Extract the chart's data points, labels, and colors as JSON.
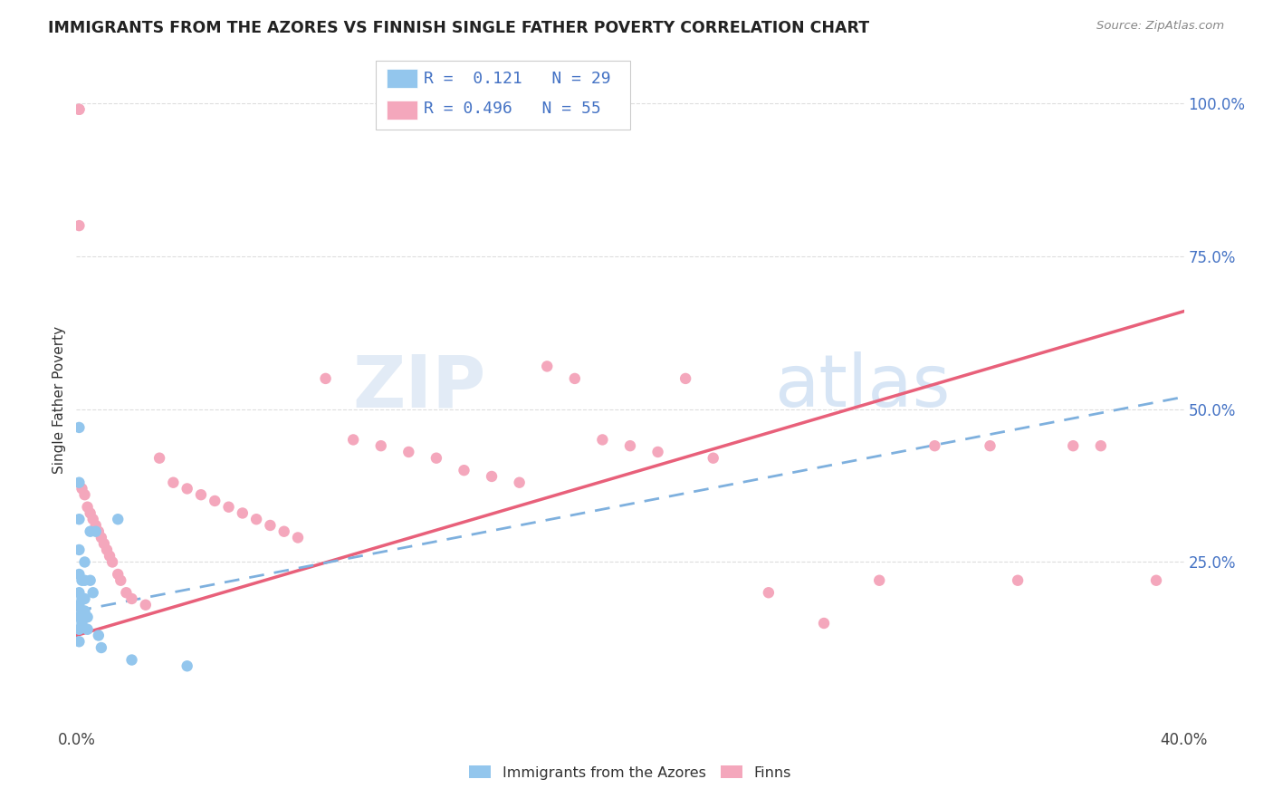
{
  "title": "IMMIGRANTS FROM THE AZORES VS FINNISH SINGLE FATHER POVERTY CORRELATION CHART",
  "source": "Source: ZipAtlas.com",
  "ylabel": "Single Father Poverty",
  "xlim": [
    0.0,
    0.4
  ],
  "ylim": [
    -0.02,
    1.05
  ],
  "watermark_zip": "ZIP",
  "watermark_atlas": "atlas",
  "blue_color": "#93C6ED",
  "pink_color": "#F4A7BC",
  "blue_line_color": "#7EB0DE",
  "pink_line_color": "#E8607A",
  "background_color": "#FFFFFF",
  "grid_color": "#DDDDDD",
  "blue_x": [
    0.001,
    0.001,
    0.001,
    0.001,
    0.001,
    0.001,
    0.001,
    0.001,
    0.001,
    0.001,
    0.002,
    0.002,
    0.002,
    0.002,
    0.003,
    0.003,
    0.003,
    0.003,
    0.004,
    0.004,
    0.005,
    0.005,
    0.006,
    0.007,
    0.008,
    0.009,
    0.015,
    0.02,
    0.04
  ],
  "blue_y": [
    0.47,
    0.38,
    0.32,
    0.27,
    0.23,
    0.2,
    0.18,
    0.16,
    0.14,
    0.12,
    0.22,
    0.19,
    0.17,
    0.15,
    0.25,
    0.22,
    0.19,
    0.17,
    0.16,
    0.14,
    0.3,
    0.22,
    0.2,
    0.3,
    0.13,
    0.11,
    0.32,
    0.09,
    0.08
  ],
  "pink_x": [
    0.001,
    0.001,
    0.001,
    0.002,
    0.003,
    0.004,
    0.005,
    0.006,
    0.007,
    0.008,
    0.009,
    0.01,
    0.011,
    0.012,
    0.013,
    0.015,
    0.016,
    0.018,
    0.02,
    0.025,
    0.03,
    0.035,
    0.04,
    0.045,
    0.05,
    0.055,
    0.06,
    0.065,
    0.07,
    0.075,
    0.08,
    0.09,
    0.1,
    0.11,
    0.12,
    0.13,
    0.14,
    0.15,
    0.16,
    0.17,
    0.18,
    0.19,
    0.2,
    0.21,
    0.22,
    0.23,
    0.25,
    0.27,
    0.29,
    0.31,
    0.33,
    0.34,
    0.36,
    0.37,
    0.39
  ],
  "pink_y": [
    0.99,
    0.99,
    0.8,
    0.37,
    0.36,
    0.34,
    0.33,
    0.32,
    0.31,
    0.3,
    0.29,
    0.28,
    0.27,
    0.26,
    0.25,
    0.23,
    0.22,
    0.2,
    0.19,
    0.18,
    0.42,
    0.38,
    0.37,
    0.36,
    0.35,
    0.34,
    0.33,
    0.32,
    0.31,
    0.3,
    0.29,
    0.55,
    0.45,
    0.44,
    0.43,
    0.42,
    0.4,
    0.39,
    0.38,
    0.57,
    0.55,
    0.45,
    0.44,
    0.43,
    0.55,
    0.42,
    0.2,
    0.15,
    0.22,
    0.44,
    0.44,
    0.22,
    0.44,
    0.44,
    0.22
  ],
  "blue_line_x": [
    0.0,
    0.4
  ],
  "blue_line_y": [
    0.17,
    0.52
  ],
  "pink_line_x": [
    0.0,
    0.4
  ],
  "pink_line_y": [
    0.13,
    0.66
  ]
}
